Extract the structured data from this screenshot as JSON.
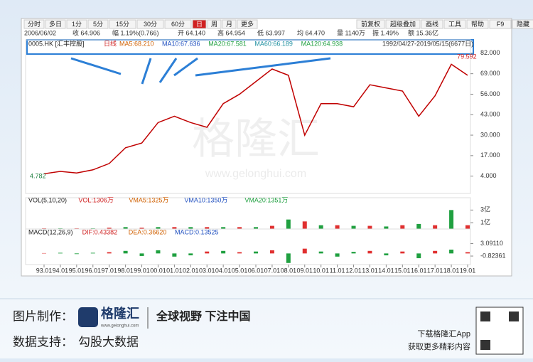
{
  "toolbar": {
    "left": [
      "分时",
      "多日",
      "1分",
      "5分",
      "15分",
      "30分",
      "60分",
      "日",
      "周",
      "月",
      "更多"
    ],
    "active": 7,
    "right": [
      "前复权",
      "超级叠加",
      "画线",
      "工具",
      "帮助",
      "F9",
      "隐藏"
    ]
  },
  "info": [
    "2006/06/02",
    "收 64.906",
    "幅 1.19%(0.766)",
    "开 64.140",
    "高 64.954",
    "低 63.997",
    "均 64.470",
    "量 1140万",
    "振 1.49%",
    "额 15.36亿"
  ],
  "chart_data": [
    {
      "type": "line",
      "header": [
        "0005.HK [汇丰控股]",
        "日线",
        "MA5:68.210",
        "MA10:67.636",
        "MA20:67.581",
        "MA60:66.189",
        "MA120:64.938"
      ],
      "range_text": "1992/04/27-2019/05/15(6677日)",
      "categories": [
        "93.01",
        "94.01",
        "95.01",
        "96.01",
        "97.01",
        "98.01",
        "99.01",
        "00.01",
        "01.01",
        "02.01",
        "03.01",
        "04.01",
        "05.01",
        "06.01",
        "07.01",
        "08.01",
        "09.01",
        "10.01",
        "11.01",
        "12.01",
        "13.01",
        "14.01",
        "15.01",
        "16.01",
        "17.01",
        "18.01",
        "19.01"
      ],
      "values": [
        5.5,
        7,
        6,
        8,
        12,
        22,
        25,
        38,
        42,
        38,
        35,
        50,
        56,
        64,
        72,
        68,
        30,
        50,
        50,
        48,
        62,
        60,
        58,
        42,
        55,
        75,
        68
      ],
      "color": "#c00000",
      "ylim": [
        -7,
        86
      ],
      "yticks": [
        {
          "value": 4,
          "label": "4.000"
        },
        {
          "value": 17,
          "label": "17.000"
        },
        {
          "value": 30,
          "label": "30.000"
        },
        {
          "value": 43,
          "label": "43.000"
        },
        {
          "value": 56,
          "label": "56.000"
        },
        {
          "value": 69,
          "label": "69.000"
        },
        {
          "value": 82,
          "label": "82.000"
        }
      ],
      "low": 4.782,
      "high": 79.592
    },
    {
      "type": "bar",
      "header": [
        "VOL(5,10,20)",
        "VOL:1306万",
        "VMA5:1325万",
        "VMA10:1350万",
        "VMA20:1351万"
      ],
      "values": [
        0.1,
        0.1,
        0.1,
        0.1,
        0.2,
        0.3,
        0.2,
        0.3,
        0.3,
        0.3,
        0.3,
        0.3,
        0.3,
        0.3,
        0.5,
        1.5,
        1.2,
        0.6,
        0.6,
        0.5,
        0.5,
        0.4,
        0.6,
        0.8,
        0.6,
        3,
        0.6
      ],
      "colors": [
        "#e03030",
        "#20a040"
      ],
      "ylim": [
        0,
        3.6
      ],
      "yticks": [
        {
          "value": 3,
          "label": "3亿"
        },
        {
          "value": 1,
          "label": "1亿"
        }
      ]
    },
    {
      "type": "bar",
      "header": [
        "MACD(12,26,9)",
        "DIF:0.43382",
        "DEA:0.36620",
        "MACD:0.13525"
      ],
      "values": [
        0.1,
        0.2,
        -0.2,
        0.2,
        0.4,
        0.8,
        -0.8,
        1,
        -1,
        -0.6,
        0.6,
        0.8,
        0.4,
        0.6,
        1,
        -3,
        1.5,
        0.6,
        -1,
        0.5,
        0.8,
        -0.6,
        0.6,
        -1.5,
        0.8,
        1.2,
        0.4
      ],
      "colors": [
        "#e03030",
        "#20a040"
      ],
      "ylim": [
        -3.5,
        5
      ],
      "yticks": [
        {
          "value": 3.0911,
          "label": "3.09110"
        },
        {
          "value": -0.82361,
          "label": "-0.82361"
        }
      ]
    }
  ],
  "footer": {
    "made_label": "图片制作：",
    "brand": "格隆汇",
    "site": "www.gelonghui.com",
    "slogan": "全球视野 下注中国",
    "data_label": "数据支持：",
    "data_source": "勾股大数据",
    "app": "下载格隆汇App",
    "more": "获取更多精彩内容"
  }
}
